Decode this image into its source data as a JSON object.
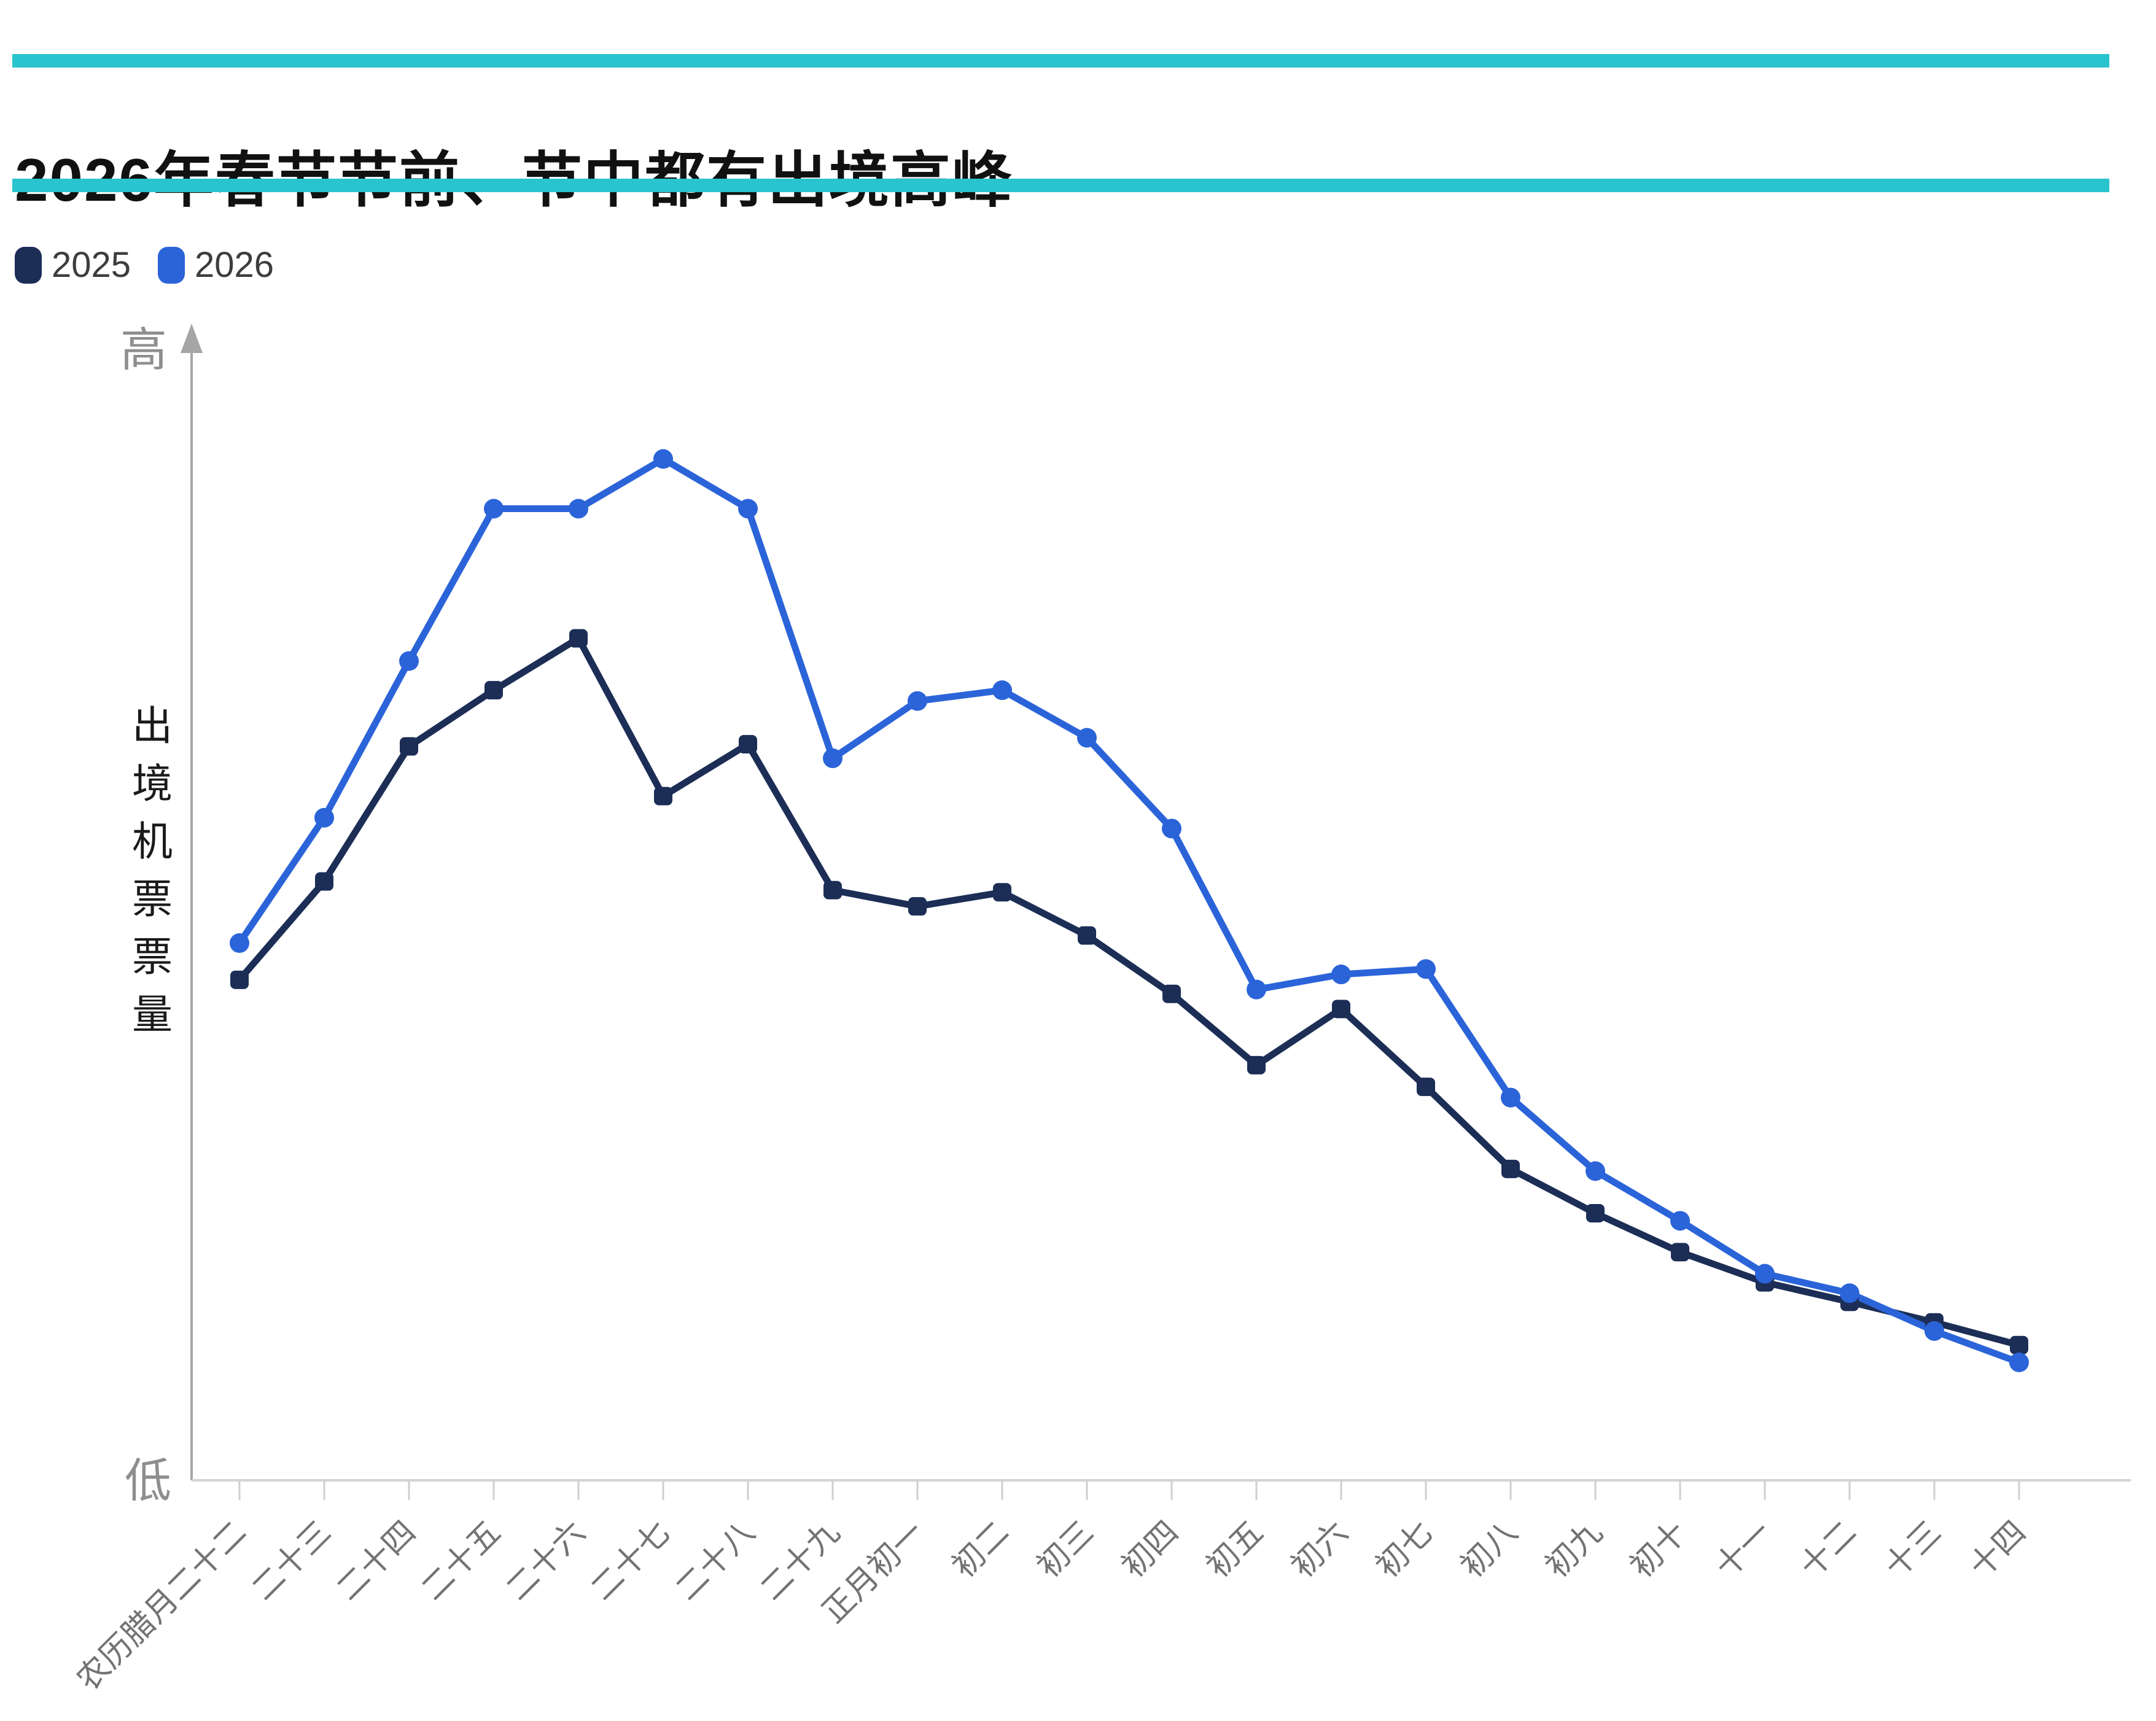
{
  "header": {
    "title": "2026年春节节前、节中都有出境高峰",
    "accent_color": "#2ac4ce"
  },
  "legend": {
    "items": [
      {
        "label": "2025",
        "color": "#1c2e56"
      },
      {
        "label": "2026",
        "color": "#2b64d9"
      }
    ]
  },
  "y_axis": {
    "high_label": "高",
    "low_label": "低",
    "title": "出境机票票量"
  },
  "chart_data": {
    "type": "line",
    "title": "2026年春节节前、节中都有出境高峰",
    "categories": [
      "农历腊月二十二",
      "二十三",
      "二十四",
      "二十五",
      "二十六",
      "二十七",
      "二十八",
      "二十九",
      "正月初一",
      "初二",
      "初三",
      "初四",
      "初五",
      "初六",
      "初七",
      "初八",
      "初九",
      "初十",
      "十一",
      "十二",
      "十三",
      "十四"
    ],
    "series": [
      {
        "name": "2025",
        "color": "#1c2e56",
        "marker": "rounded-square",
        "values": [
          49.1,
          58.2,
          70.7,
          75.9,
          80.7,
          66.1,
          70.9,
          57.4,
          55.9,
          57.2,
          53.2,
          47.8,
          41.2,
          46.4,
          39.2,
          31.6,
          27.5,
          23.9,
          21.1,
          19.3,
          17.4,
          15.3
        ]
      },
      {
        "name": "2026",
        "color": "#2b64d9",
        "marker": "circle",
        "values": [
          52.5,
          64.1,
          78.6,
          92.7,
          92.7,
          97.3,
          92.7,
          69.6,
          74.9,
          75.9,
          71.5,
          63.1,
          48.2,
          49.6,
          50.1,
          38.2,
          31.4,
          26.8,
          21.9,
          20.1,
          16.6,
          13.7
        ]
      }
    ],
    "xlabel": "",
    "ylabel": "出境机票票量",
    "y_axis_text": {
      "high": "高",
      "low": "低"
    },
    "ylim": [
      0,
      105
    ],
    "grid": false,
    "legend_position": "top-left",
    "x_label_rotation": 45,
    "value_note": "relative ticket-volume index 0-100; axis is unlabeled except 高/低"
  }
}
